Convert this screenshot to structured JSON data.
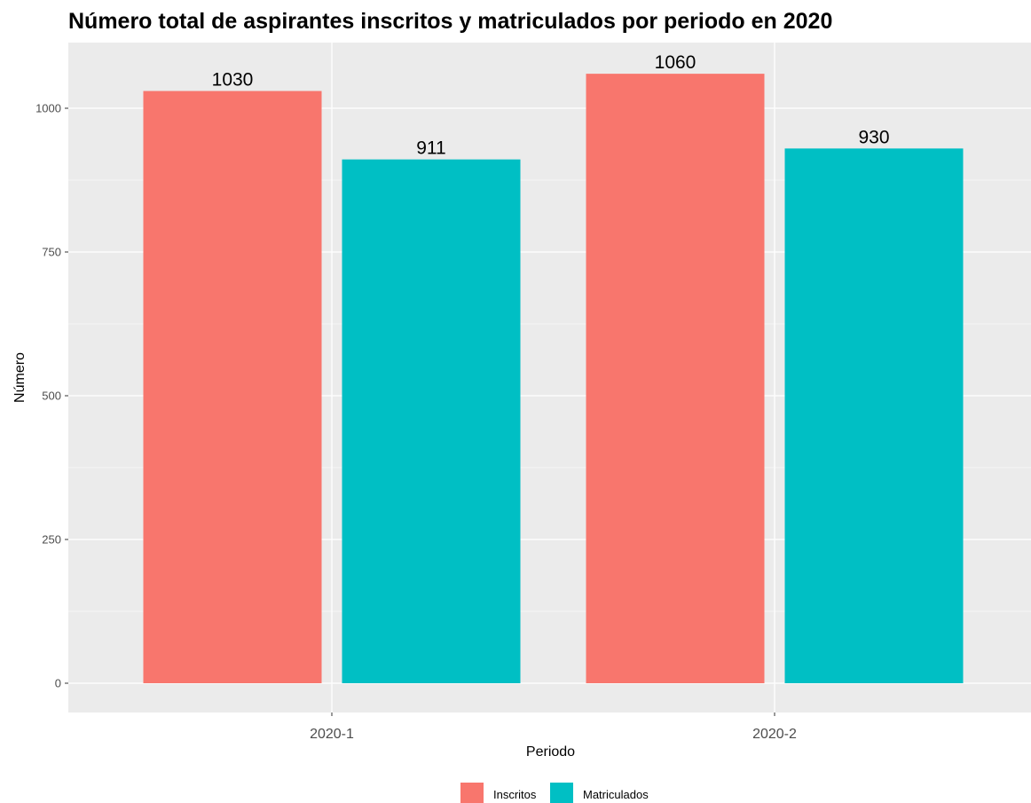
{
  "chart_data": {
    "type": "bar",
    "title": "Número total de aspirantes inscritos y matriculados por periodo en 2020",
    "xlabel": "Periodo",
    "ylabel": "Número",
    "categories": [
      "2020-1",
      "2020-2"
    ],
    "series": [
      {
        "name": "Inscritos",
        "color": "#F8766D",
        "values": [
          1030,
          1060
        ]
      },
      {
        "name": "Matriculados",
        "color": "#00BFC4",
        "values": [
          911,
          930
        ]
      }
    ],
    "ylim": [
      0,
      1100
    ],
    "yticks": [
      0,
      250,
      500,
      750,
      1000
    ],
    "grid": true,
    "legend_position": "bottom",
    "panel_background": "#EBEBEB",
    "gridline_color": "#FFFFFF",
    "axis_text_color": "#4D4D4D"
  }
}
